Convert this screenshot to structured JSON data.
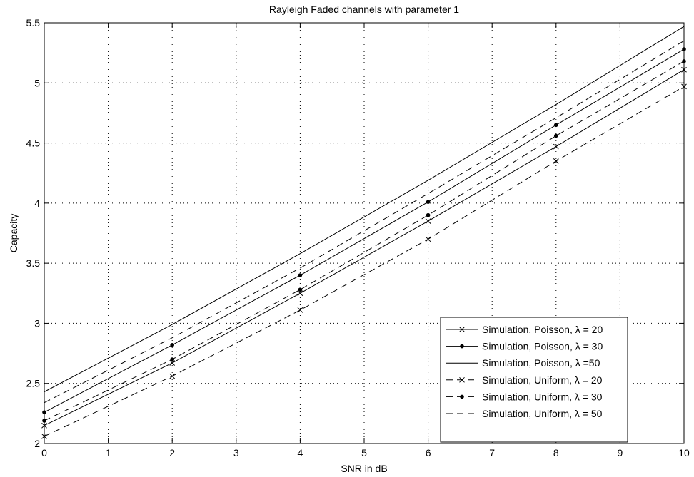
{
  "chart_data": {
    "type": "line",
    "title": "Rayleigh Faded channels with parameter 1",
    "xlabel": "SNR in dB",
    "ylabel": "Capacity",
    "xlim": [
      0,
      10
    ],
    "ylim": [
      2,
      5.5
    ],
    "xticks": [
      0,
      1,
      2,
      3,
      4,
      5,
      6,
      7,
      8,
      9,
      10
    ],
    "yticks": [
      2,
      2.5,
      3,
      3.5,
      4,
      4.5,
      5,
      5.5
    ],
    "xtick_labels": [
      "0",
      "1",
      "2",
      "3",
      "4",
      "5",
      "6",
      "7",
      "8",
      "9",
      "10"
    ],
    "ytick_labels": [
      "2",
      "2.5",
      "3",
      "3.5",
      "4",
      "4.5",
      "5",
      "5.5"
    ],
    "grid": true,
    "legend_position": "bottom-right",
    "series": [
      {
        "name": "Simulation, Poisson, λ = 20",
        "style": "solid",
        "marker": "x",
        "x": [
          0,
          2,
          4,
          6,
          8,
          10
        ],
        "values": [
          2.15,
          2.67,
          3.25,
          3.85,
          4.47,
          5.11
        ]
      },
      {
        "name": "Simulation, Poisson, λ = 30",
        "style": "solid",
        "marker": "dot",
        "x": [
          0,
          2,
          4,
          6,
          8,
          10
        ],
        "values": [
          2.26,
          2.82,
          3.4,
          4.01,
          4.65,
          5.28
        ]
      },
      {
        "name": "Simulation, Poisson, λ =50",
        "style": "solid",
        "marker": "none",
        "x": [
          0,
          2,
          4,
          6,
          8,
          10
        ],
        "values": [
          2.43,
          2.99,
          3.58,
          4.19,
          4.82,
          5.47
        ]
      },
      {
        "name": "Simulation, Uniform, λ = 20",
        "style": "dashed",
        "marker": "x",
        "x": [
          0,
          2,
          4,
          6,
          8,
          10
        ],
        "values": [
          2.06,
          2.56,
          3.11,
          3.7,
          4.35,
          4.97
        ]
      },
      {
        "name": "Simulation, Uniform, λ = 30",
        "style": "dashed",
        "marker": "dot",
        "x": [
          0,
          2,
          4,
          6,
          8,
          10
        ],
        "values": [
          2.19,
          2.7,
          3.28,
          3.9,
          4.56,
          5.18
        ]
      },
      {
        "name": "Simulation, Uniform, λ = 50",
        "style": "dashed",
        "marker": "none",
        "x": [
          0,
          2,
          4,
          6,
          8,
          10
        ],
        "values": [
          2.34,
          2.88,
          3.46,
          4.08,
          4.71,
          5.35
        ]
      }
    ]
  }
}
